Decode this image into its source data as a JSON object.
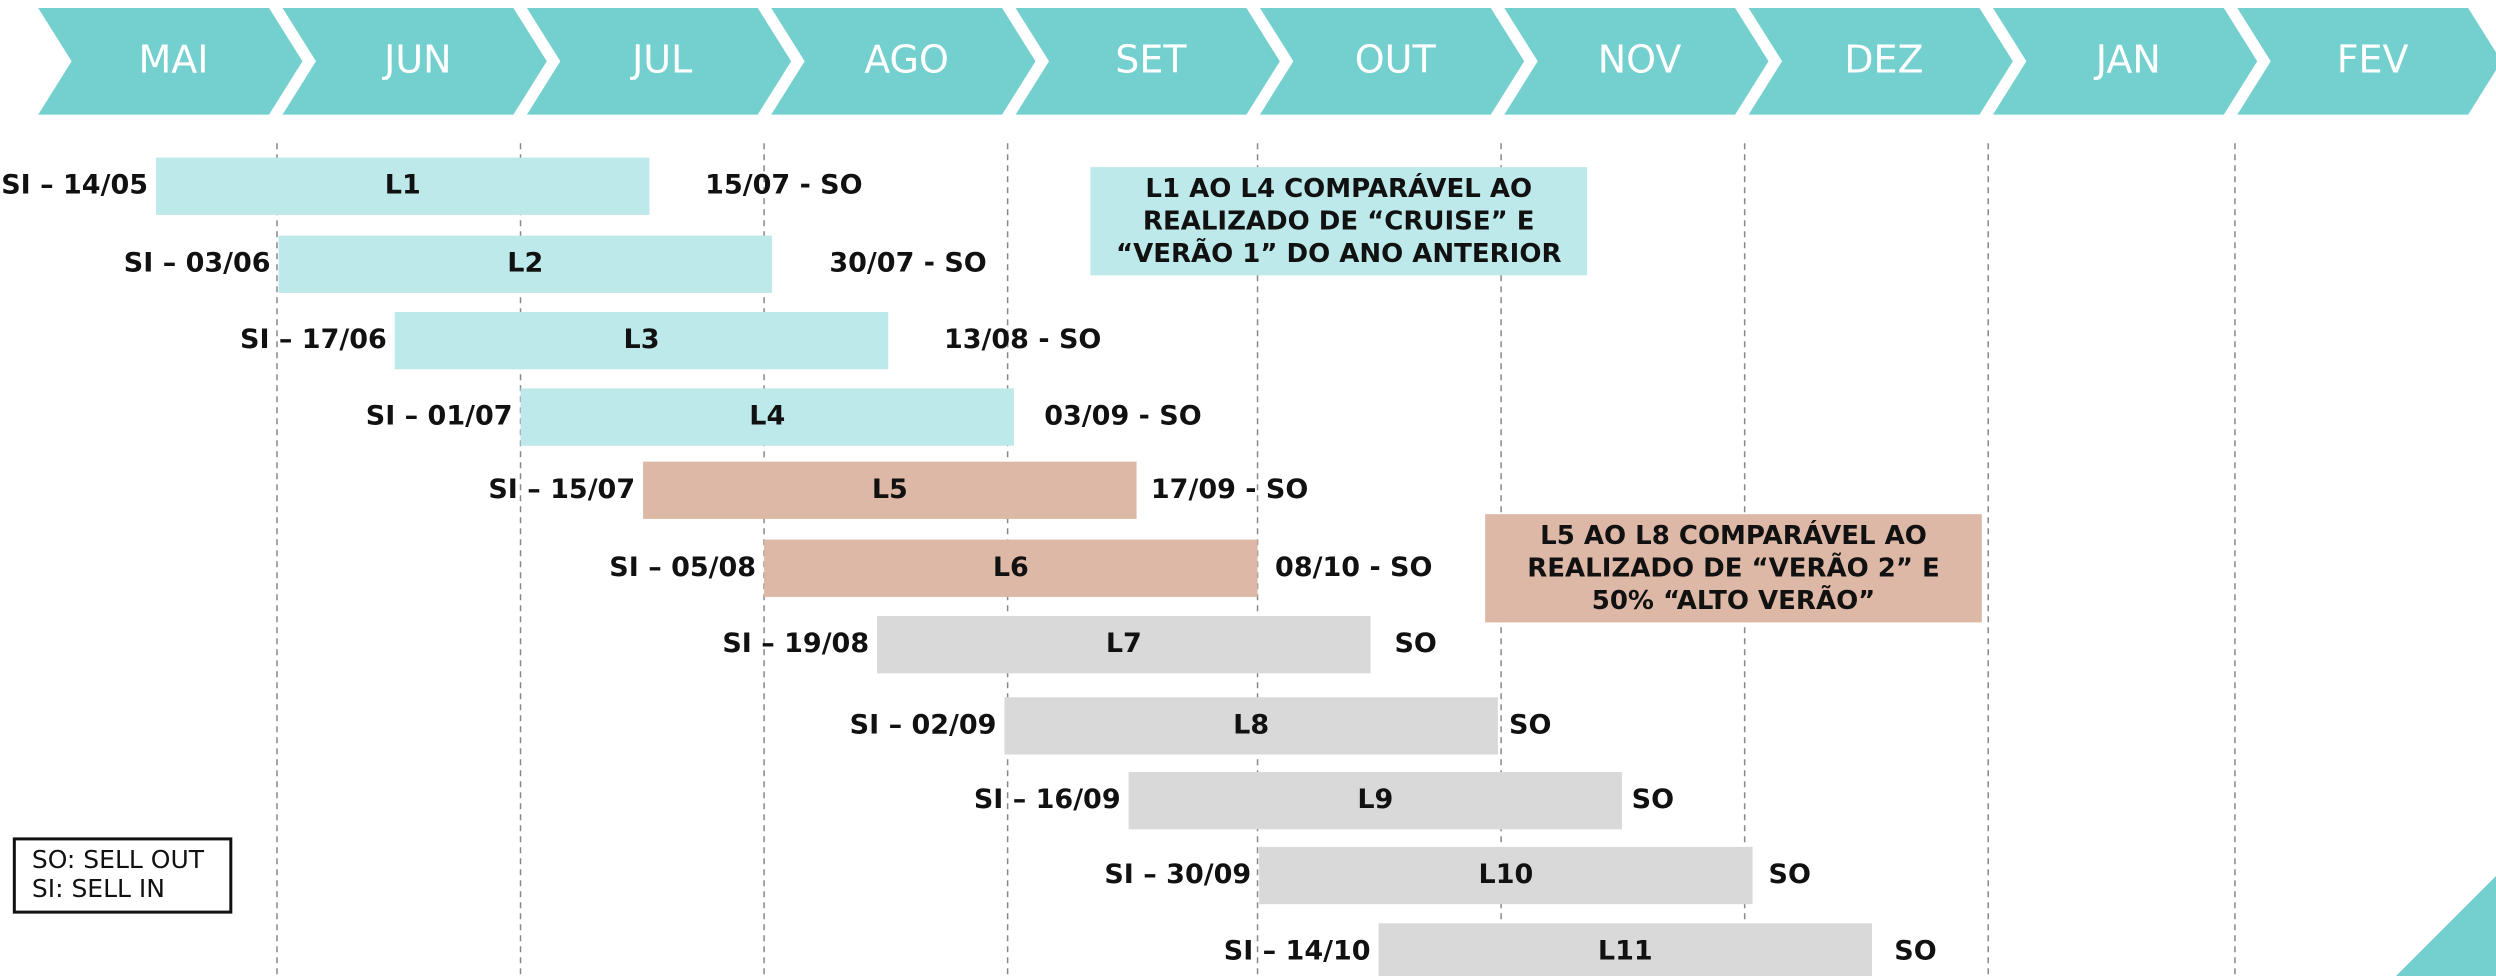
{
  "months": [
    "MAI",
    "JUN",
    "JUL",
    "AGO",
    "SET",
    "OUT",
    "NOV",
    "DEZ",
    "JAN",
    "FEV"
  ],
  "rows": [
    {
      "start": "SI – 14/05",
      "label": "L1",
      "end": "15/07 - SO"
    },
    {
      "start": "SI – 03/06",
      "label": "L2",
      "end": "30/07 - SO"
    },
    {
      "start": "SI – 17/06",
      "label": "L3",
      "end": "13/08 - SO"
    },
    {
      "start": "SI – 01/07",
      "label": "L4",
      "end": "03/09 - SO"
    },
    {
      "start": "SI – 15/07",
      "label": "L5",
      "end": "17/09 - SO"
    },
    {
      "start": "SI – 05/08",
      "label": "L6",
      "end": "08/10 - SO"
    },
    {
      "start": "SI – 19/08",
      "label": "L7",
      "end": "SO"
    },
    {
      "start": "SI – 02/09",
      "label": "L8",
      "end": "SO"
    },
    {
      "start": "SI – 16/09",
      "label": "L9",
      "end": "SO"
    },
    {
      "start": "SI – 30/09",
      "label": "L10",
      "end": "SO"
    },
    {
      "start": "SI – 14/10",
      "label": "L11",
      "end": "SO"
    }
  ],
  "notes": [
    {
      "lines": [
        "L1 AO L4 COMPARÁVEL AO",
        "REALIZADO DE “CRUISE” E",
        "“VERÃO 1” DO ANO ANTERIOR"
      ]
    },
    {
      "lines": [
        "L5 AO L8 COMPARÁVEL AO",
        "REALIZADO DE “VERÃO 2” E",
        "50% “ALTO VERÃO”"
      ]
    }
  ],
  "legend": [
    "SO: SELL OUT",
    "SI: SELL IN"
  ]
}
